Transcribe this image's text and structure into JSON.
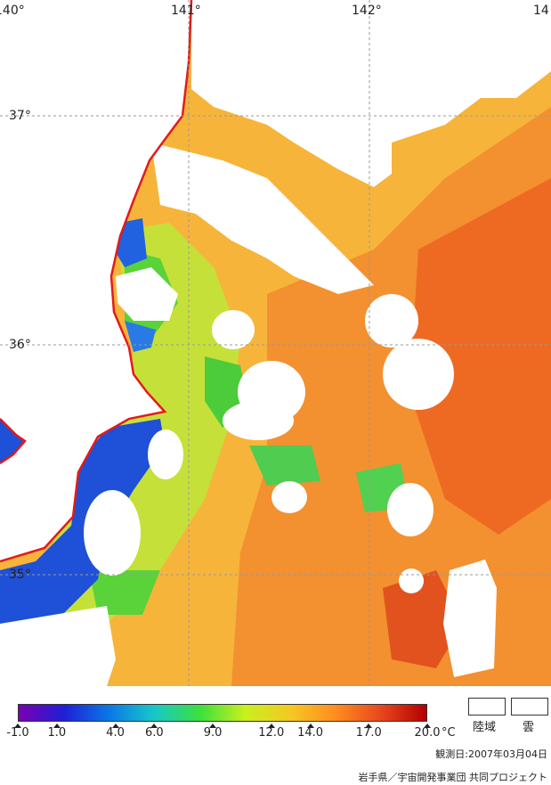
{
  "map": {
    "lon_labels": [
      "140°",
      "141°",
      "142°",
      "14"
    ],
    "lat_labels": [
      "37°",
      "36°",
      "35°"
    ]
  },
  "legend": {
    "tick_labels": [
      "-1.0",
      "1.0",
      "4.0",
      "6.0",
      "9.0",
      "12.0",
      "14.0",
      "17.0",
      "20.0"
    ],
    "tick_values": [
      -1.0,
      1.0,
      4.0,
      6.0,
      9.0,
      12.0,
      14.0,
      17.0,
      20.0
    ],
    "range": [
      -1.0,
      20.0
    ],
    "unit": "°C",
    "gradient_colors": [
      "#7a00b4",
      "#1f1fd6",
      "#0a78e6",
      "#18c8c8",
      "#3ce03c",
      "#c8f01e",
      "#f5c823",
      "#ff8c1e",
      "#e8461e",
      "#b40000"
    ],
    "land_label": "陸域",
    "cloud_label": "雲"
  },
  "footer": {
    "observation_date": "観測日:2007年03月04日",
    "credit": "岩手県／宇宙開発事業団 共同プロジェクト"
  },
  "colors": {
    "coastline": "#e21b1b",
    "grid": "#9a9a9a",
    "warm": "#f59a2a",
    "hot": "#ea5a1c",
    "mild": "#f7c23c",
    "cool": "#9ee02a",
    "cold": "#1f4fe0",
    "cloud": "#ffffff"
  }
}
